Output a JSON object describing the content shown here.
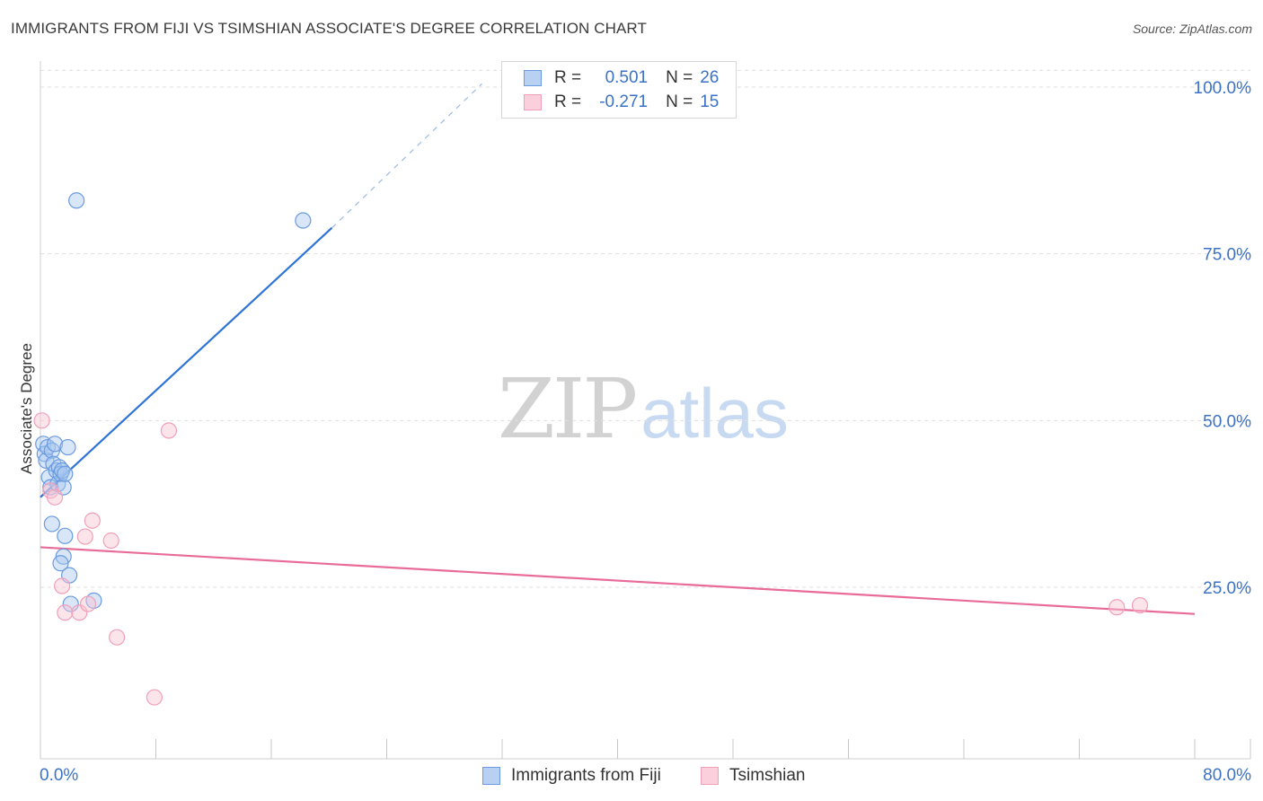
{
  "title": "IMMIGRANTS FROM FIJI VS TSIMSHIAN ASSOCIATE'S DEGREE CORRELATION CHART",
  "source": "Source: ZipAtlas.com",
  "watermark": {
    "zip": "ZIP",
    "atlas": "atlas"
  },
  "legend_box": {
    "rows": [
      {
        "r_label": "R =",
        "r_value": "0.501",
        "n_label": "N =",
        "n_value": "26"
      },
      {
        "r_label": "R =",
        "r_value": "-0.271",
        "n_label": "N =",
        "n_value": "15"
      }
    ]
  },
  "chart_data": {
    "type": "scatter",
    "title": "IMMIGRANTS FROM FIJI VS TSIMSHIAN ASSOCIATE'S DEGREE CORRELATION CHART",
    "xlabel": "",
    "ylabel": "Associate's Degree",
    "xlim": [
      0,
      80
    ],
    "ylim": [
      0,
      105
    ],
    "x_tick_labels": [
      "0.0%",
      "80.0%"
    ],
    "y_ticks": [
      25,
      50,
      75,
      100
    ],
    "y_tick_labels": [
      "25.0%",
      "50.0%",
      "75.0%",
      "100.0%"
    ],
    "grid": true,
    "legend_position": "bottom-center",
    "colors": {
      "fiji": "#6a9be0",
      "tsimshian": "#f0a0b8",
      "fiji_line": "#2e74d6",
      "tsimshian_line": "#e86b98"
    },
    "series": [
      {
        "name": "Immigrants from Fiji",
        "r": 0.501,
        "n": 26,
        "points": [
          [
            0.2,
            46.5
          ],
          [
            0.3,
            45.0
          ],
          [
            0.4,
            44.0
          ],
          [
            0.5,
            46.0
          ],
          [
            0.6,
            41.5
          ],
          [
            0.7,
            40.0
          ],
          [
            0.8,
            45.5
          ],
          [
            0.9,
            43.5
          ],
          [
            1.0,
            46.5
          ],
          [
            1.1,
            42.5
          ],
          [
            1.2,
            40.5
          ],
          [
            1.3,
            43.0
          ],
          [
            1.4,
            42.0
          ],
          [
            1.5,
            42.5
          ],
          [
            1.6,
            40.0
          ],
          [
            1.7,
            42.0
          ],
          [
            1.9,
            46.0
          ],
          [
            0.8,
            34.5
          ],
          [
            1.7,
            32.7
          ],
          [
            1.6,
            29.6
          ],
          [
            1.4,
            28.6
          ],
          [
            2.0,
            26.8
          ],
          [
            2.1,
            22.5
          ],
          [
            3.7,
            23.0
          ],
          [
            2.5,
            83.0
          ],
          [
            18.2,
            80.0
          ]
        ],
        "trend": {
          "x1": 0.0,
          "y1": 38.5,
          "x2": 20.2,
          "y2": 78.9,
          "dashed_to_x": 30.6,
          "dashed_to_y": 100.5
        }
      },
      {
        "name": "Tsimshian",
        "r": -0.271,
        "n": 15,
        "points": [
          [
            0.1,
            50.0
          ],
          [
            0.7,
            39.5
          ],
          [
            8.9,
            48.5
          ],
          [
            3.6,
            35.0
          ],
          [
            3.1,
            32.6
          ],
          [
            4.9,
            32.0
          ],
          [
            1.5,
            25.2
          ],
          [
            1.7,
            21.2
          ],
          [
            2.7,
            21.2
          ],
          [
            3.3,
            22.5
          ],
          [
            5.3,
            17.5
          ],
          [
            7.9,
            8.5
          ],
          [
            1.0,
            38.5
          ],
          [
            74.6,
            22.0
          ],
          [
            76.2,
            22.3
          ]
        ],
        "trend": {
          "x1": 0.0,
          "y1": 31.0,
          "x2": 80.0,
          "y2": 21.0
        }
      }
    ]
  }
}
